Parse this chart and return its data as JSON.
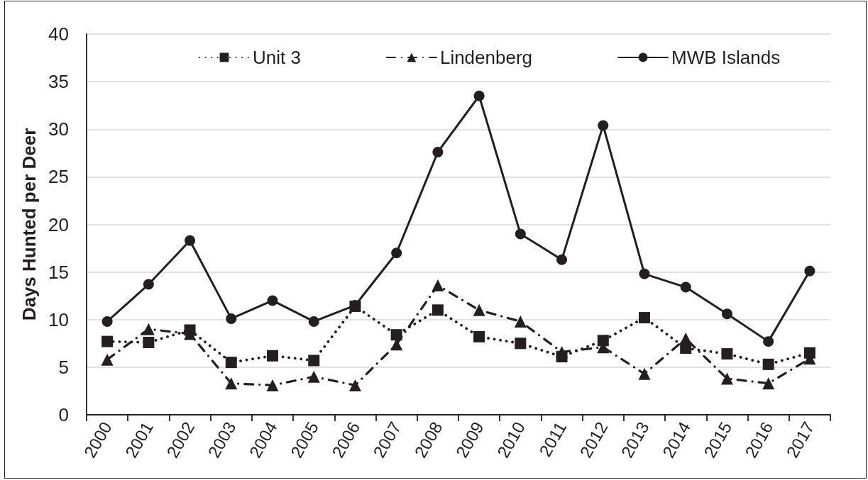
{
  "chart_data": {
    "type": "line",
    "ylabel": "Days Hunted per Deer",
    "categories": [
      "2000",
      "2001",
      "2002",
      "2003",
      "2004",
      "2005",
      "2006",
      "2007",
      "2008",
      "2009",
      "2010",
      "2011",
      "2012",
      "2013",
      "2014",
      "2015",
      "2016",
      "2017"
    ],
    "series": [
      {
        "name": "Unit 3",
        "color": "#231f20",
        "marker": "square",
        "line_style": "dotted",
        "values": [
          7.7,
          7.6,
          8.9,
          5.5,
          6.2,
          5.7,
          11.4,
          8.4,
          11.0,
          8.2,
          7.5,
          6.1,
          7.8,
          10.2,
          7.0,
          6.4,
          5.3,
          6.5
        ]
      },
      {
        "name": "Lindenberg",
        "color": "#231f20",
        "marker": "triangle",
        "line_style": "dashed",
        "values": [
          5.8,
          9.0,
          8.5,
          3.3,
          3.1,
          4.0,
          3.1,
          7.4,
          13.6,
          11.0,
          9.8,
          6.6,
          7.1,
          4.3,
          8.0,
          3.8,
          3.3,
          5.9
        ]
      },
      {
        "name": "MWB Islands",
        "color": "#231f20",
        "marker": "circle",
        "line_style": "solid",
        "values": [
          9.8,
          13.7,
          18.3,
          10.1,
          12.0,
          9.8,
          11.5,
          17.0,
          27.6,
          33.5,
          19.0,
          16.3,
          30.4,
          14.8,
          13.4,
          10.6,
          7.7,
          15.1
        ]
      }
    ],
    "ylim": [
      0,
      40
    ],
    "yticks": [
      0,
      5,
      10,
      15,
      20,
      25,
      30,
      35,
      40
    ],
    "grid": "y",
    "legend": "top"
  }
}
